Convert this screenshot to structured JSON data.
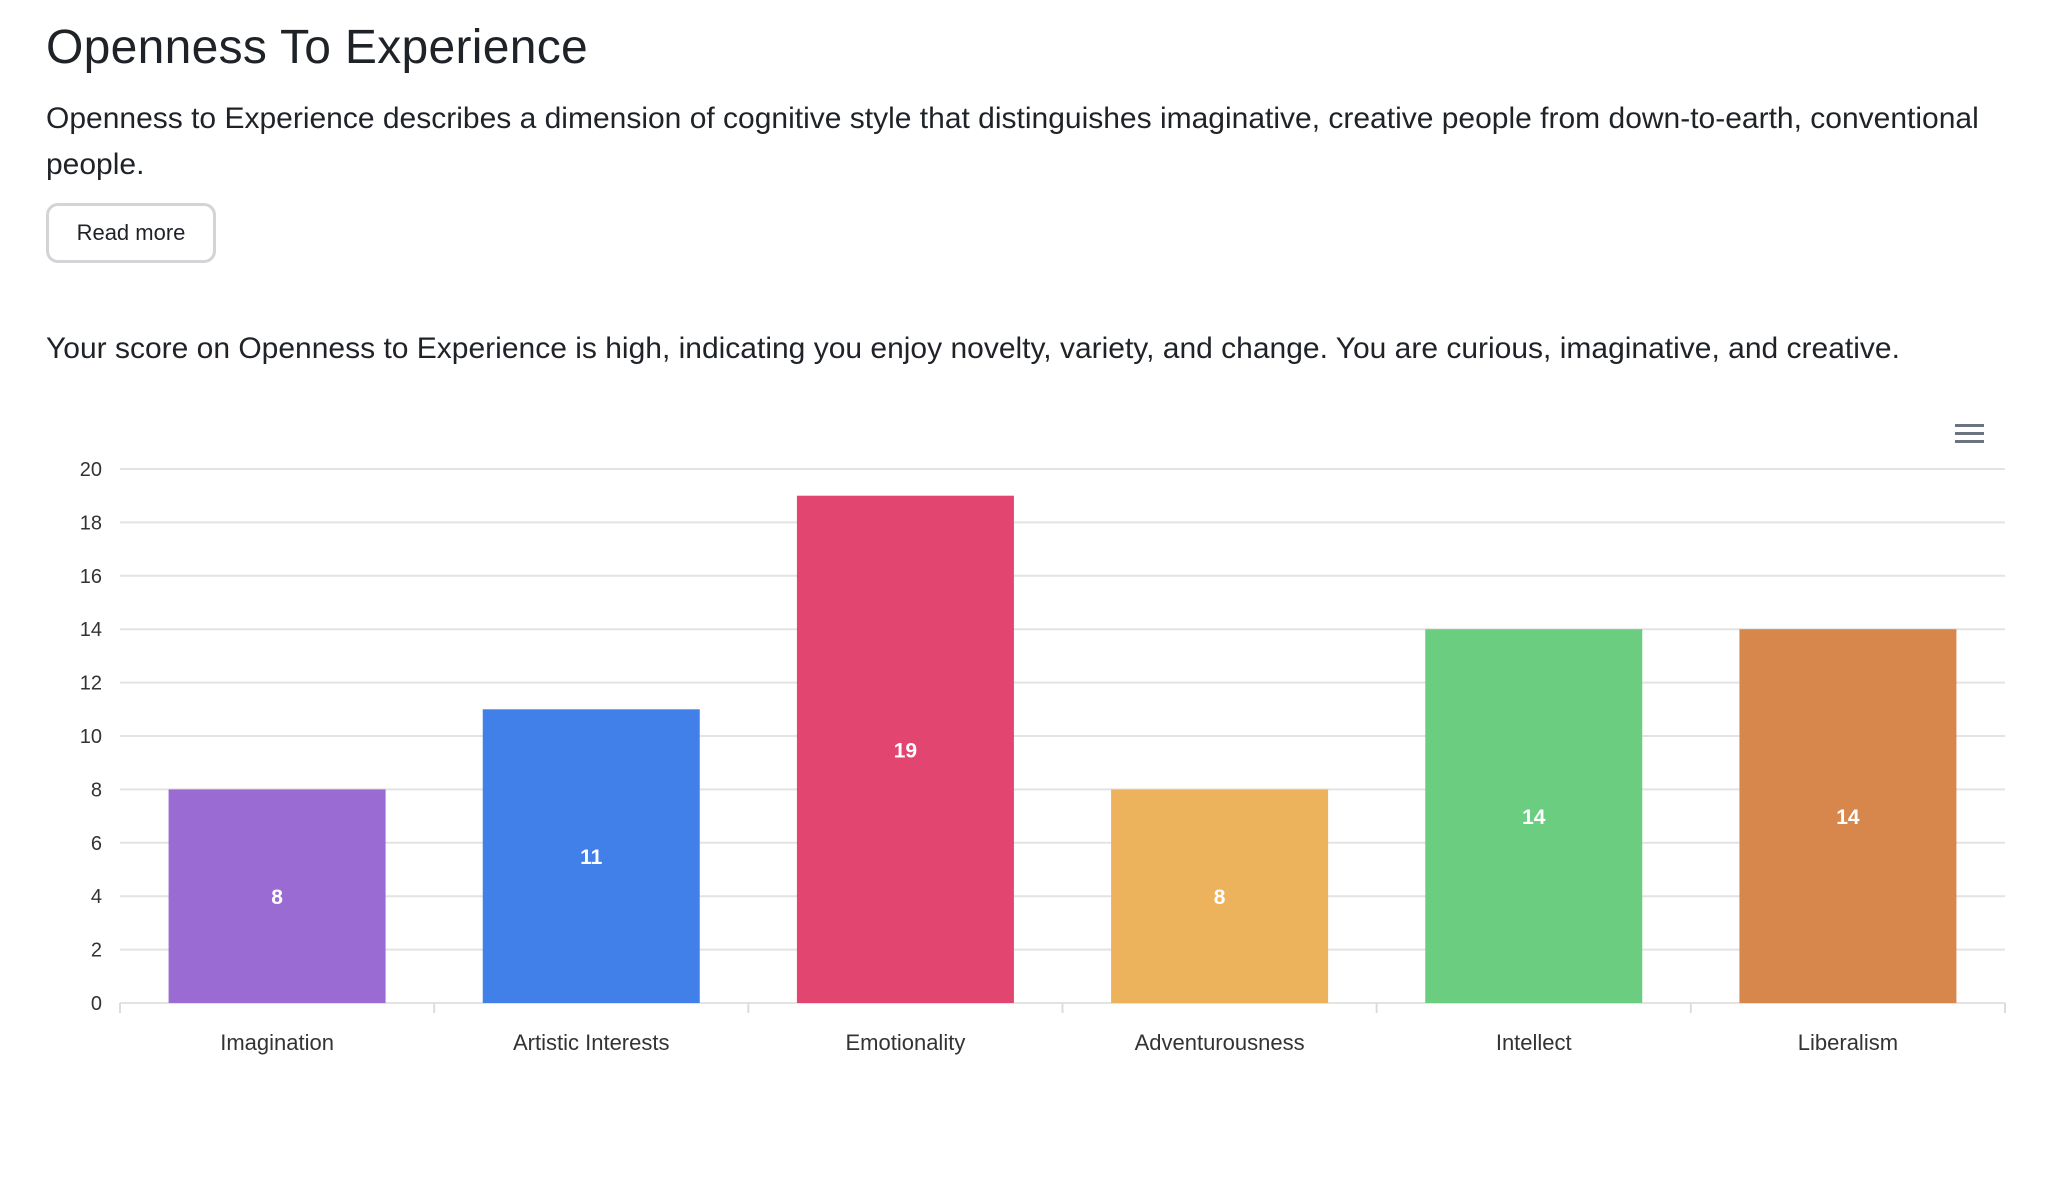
{
  "header": {
    "title": "Openness To Experience",
    "description": "Openness to Experience describes a dimension of cognitive style that distinguishes imaginative, creative people from down-to-earth, conventional people.",
    "read_more_label": "Read more",
    "score_text": "Your score on Openness to Experience is high, indicating you enjoy novelty, variety, and change. You are curious, imaginative, and creative."
  },
  "chart_menu_icon": "hamburger-menu-icon",
  "chart_data": {
    "type": "bar",
    "categories": [
      "Imagination",
      "Artistic Interests",
      "Emotionality",
      "Adventurousness",
      "Intellect",
      "Liberalism"
    ],
    "values": [
      8,
      11,
      19,
      8,
      14,
      14
    ],
    "colors": [
      "#9a6bd3",
      "#4080e8",
      "#e2456f",
      "#edb25c",
      "#6bcd7f",
      "#d8874c"
    ],
    "ylim": [
      0,
      20
    ],
    "yticks": [
      0,
      2,
      4,
      6,
      8,
      10,
      12,
      14,
      16,
      18,
      20
    ],
    "grid": true,
    "data_labels": true,
    "legend": "none"
  }
}
